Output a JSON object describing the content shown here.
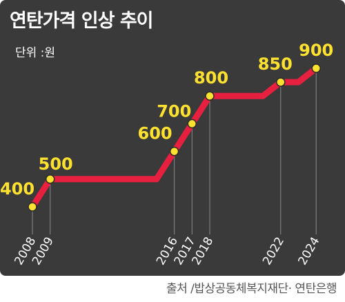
{
  "chart_data": {
    "type": "line",
    "title": "연탄가격 인상 추이",
    "unit_label": "단위 :원",
    "x": [
      2008,
      2009,
      2016,
      2017,
      2018,
      2022,
      2024
    ],
    "tick_labels": [
      "2008",
      "2009",
      "2016",
      "2017",
      "2018",
      "2022",
      "2024"
    ],
    "values": [
      400,
      500,
      600,
      700,
      800,
      850,
      900
    ],
    "data_labels": [
      "400",
      "500",
      "600",
      "700",
      "800",
      "850",
      "900"
    ],
    "ylim": [
      400,
      900
    ],
    "grid": false,
    "legend": "none"
  },
  "source": "출처 /밥상공동체복지재단· 연탄은행",
  "colors": {
    "background": "#3a3a3a",
    "line": "#e8203f",
    "marker": "#ffe230",
    "value_label": "#ffe230",
    "text": "#ffffff",
    "source_text": "#555555"
  }
}
